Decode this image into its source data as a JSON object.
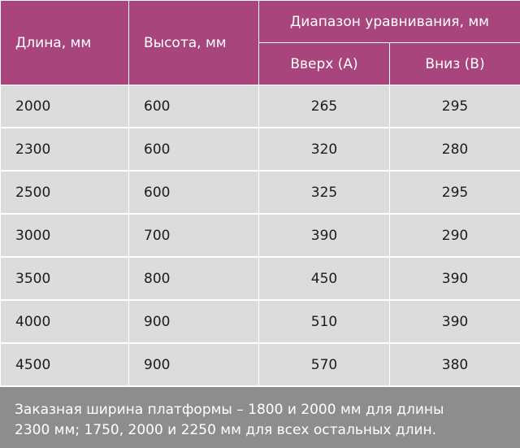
{
  "header": {
    "length": "Длина, мм",
    "height": "Высота, мм",
    "range": "Диапазон уравнивания, мм",
    "up": "Вверх (A)",
    "down": "Вниз (B)"
  },
  "rows": [
    {
      "length": "2000",
      "height": "600",
      "up": "265",
      "down": "295"
    },
    {
      "length": "2300",
      "height": "600",
      "up": "320",
      "down": "280"
    },
    {
      "length": "2500",
      "height": "600",
      "up": "325",
      "down": "295"
    },
    {
      "length": "3000",
      "height": "700",
      "up": "390",
      "down": "290"
    },
    {
      "length": "3500",
      "height": "800",
      "up": "450",
      "down": "390"
    },
    {
      "length": "4000",
      "height": "900",
      "up": "510",
      "down": "390"
    },
    {
      "length": "4500",
      "height": "900",
      "up": "570",
      "down": "380"
    }
  ],
  "note": {
    "line1": "Заказная ширина платформы –  1800 и 2000 мм для длины",
    "line2": "2300 мм; 1750, 2000 и 2250 мм для всех остальных длин."
  },
  "colors": {
    "header_bg": "#a9457d",
    "row_bg": "#dcdcdc",
    "note_bg": "#8d8d8d"
  }
}
